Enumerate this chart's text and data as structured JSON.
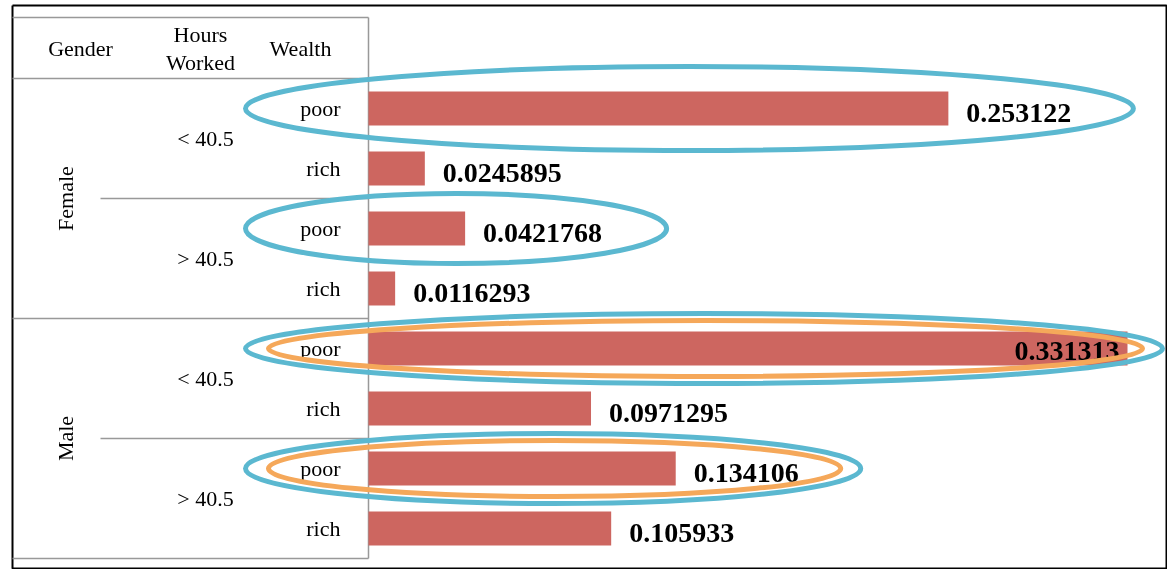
{
  "chart_data": {
    "type": "bar",
    "orientation": "horizontal",
    "categories": [
      "poor",
      "rich",
      "poor",
      "rich",
      "poor",
      "rich",
      "poor",
      "rich"
    ],
    "values": [
      0.253122,
      0.0245895,
      0.0421768,
      0.0116293,
      0.331313,
      0.0971295,
      0.134106,
      0.105933
    ],
    "color": "#cd6660",
    "data_labels": true,
    "annotations": [
      "Gender",
      "Hours Worked",
      "Wealth",
      "Female",
      "Male",
      "< 40.5",
      "> 40.5",
      "< 40.5",
      "> 40.5"
    ]
  }
}
